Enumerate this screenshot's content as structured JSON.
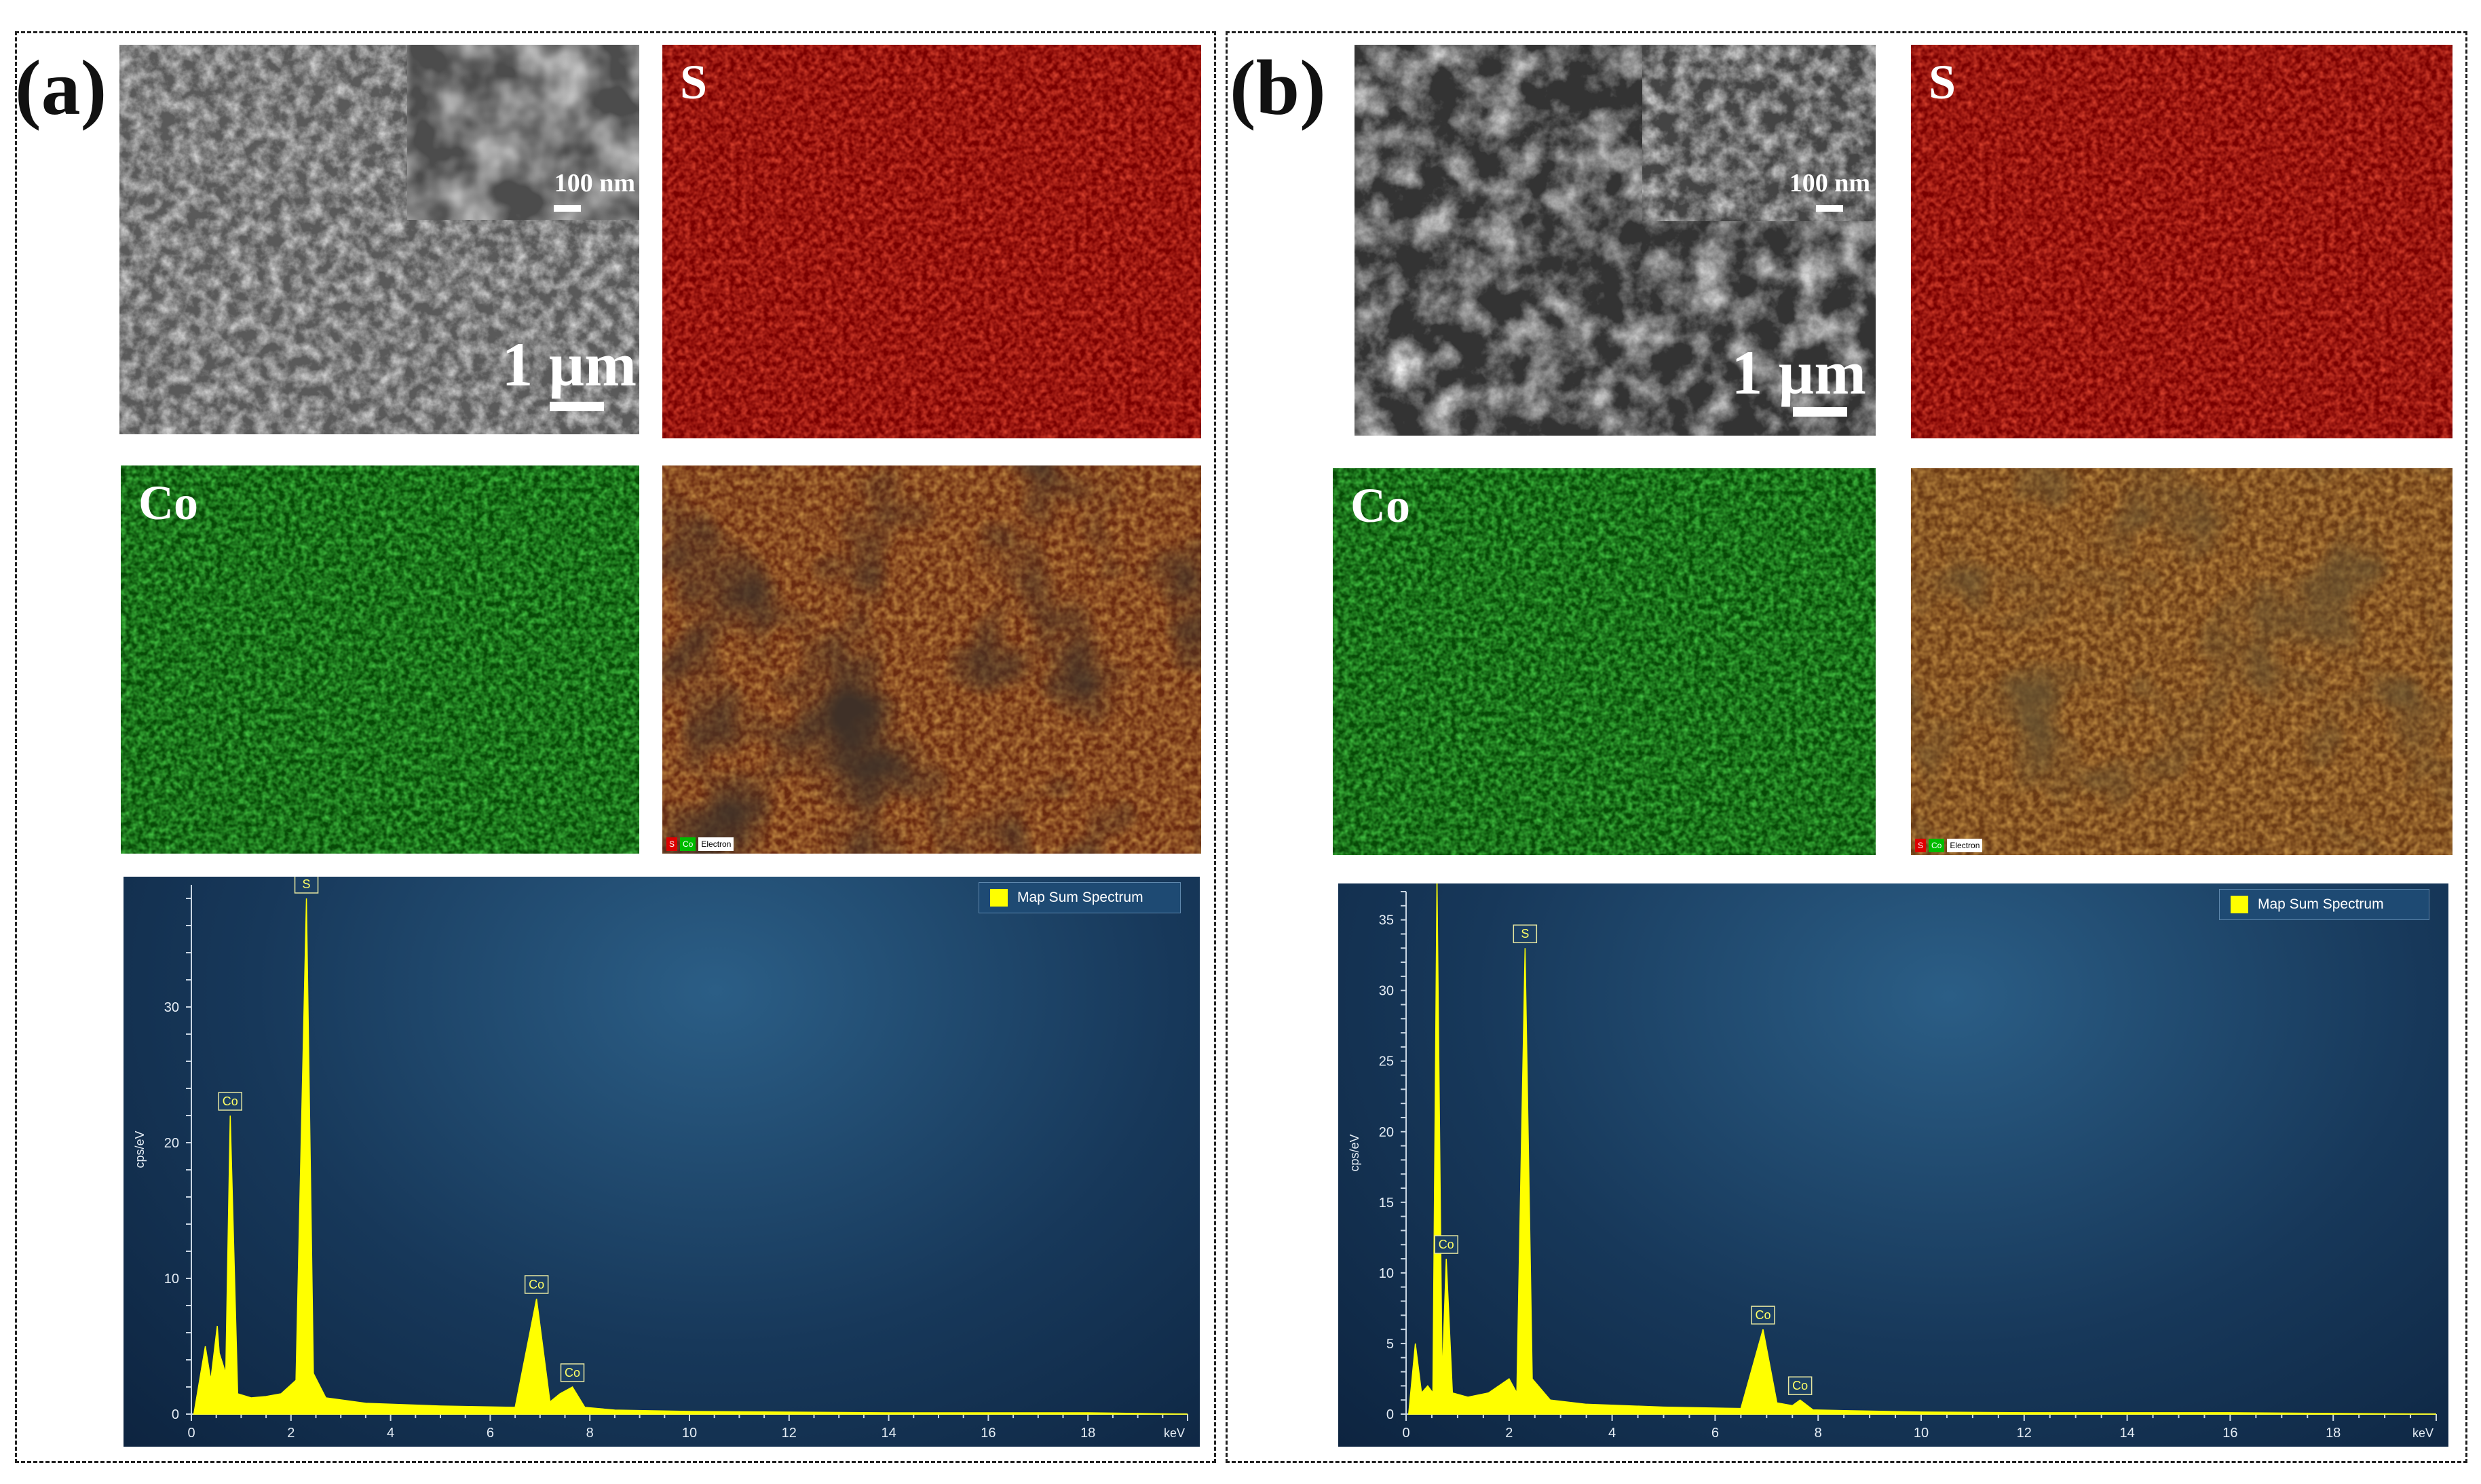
{
  "panels": [
    {
      "label": "(a)",
      "sem": {
        "inset_scale": "100 nm",
        "main_scale": "1 µm"
      },
      "maps": {
        "s_label": "S",
        "co_label": "Co"
      },
      "overlay_legend": [
        "S",
        "Co",
        "Electron"
      ],
      "spectrum": {
        "legend": "Map Sum Spectrum",
        "ylabel": "cps/eV",
        "xunit": "keV",
        "xticks": [
          "0",
          "2",
          "4",
          "6",
          "8",
          "10",
          "12",
          "14",
          "16",
          "18"
        ],
        "yticks": [
          "0",
          "10",
          "20",
          "30"
        ],
        "peak_labels": [
          "S",
          "Co",
          "Co",
          "Co"
        ]
      }
    },
    {
      "label": "(b)",
      "sem": {
        "inset_scale": "100 nm",
        "main_scale": "1 µm"
      },
      "maps": {
        "s_label": "S",
        "co_label": "Co"
      },
      "overlay_legend": [
        "S",
        "Co",
        "Electron"
      ],
      "spectrum": {
        "legend": "Map Sum Spectrum",
        "ylabel": "cps/eV",
        "xunit": "keV",
        "xticks": [
          "0",
          "2",
          "4",
          "6",
          "8",
          "10",
          "12",
          "14",
          "16",
          "18"
        ],
        "yticks": [
          "0",
          "5",
          "10",
          "15",
          "20",
          "25",
          "30",
          "35"
        ],
        "peak_labels": [
          "S",
          "Co",
          "Co",
          "Co"
        ]
      }
    }
  ],
  "chart_data": [
    {
      "type": "line",
      "legend_entries": [
        "Map Sum Spectrum"
      ],
      "xlabel": "keV",
      "ylabel": "cps/eV",
      "xlim": [
        0,
        20
      ],
      "ylim": [
        0,
        39
      ],
      "series": [
        {
          "x": [
            0.05,
            0.28,
            0.39,
            0.52,
            0.56,
            0.69,
            0.78,
            0.93,
            1.2,
            1.5,
            1.8,
            2.1,
            2.31,
            2.45,
            2.7,
            3.5,
            5,
            6.5,
            6.93,
            7.2,
            7.4,
            7.65,
            7.9,
            8.5,
            10,
            12,
            14,
            16,
            18,
            20
          ],
          "values": [
            0,
            5,
            2.5,
            6.5,
            4.5,
            3,
            22,
            1.5,
            1.2,
            1.3,
            1.5,
            2.5,
            38,
            3,
            1.2,
            0.8,
            0.6,
            0.5,
            8.5,
            0.9,
            1.5,
            2.0,
            0.5,
            0.3,
            0.2,
            0.15,
            0.1,
            0.1,
            0.1,
            0
          ]
        }
      ],
      "peaks": [
        {
          "label": "Co",
          "x": 0.78,
          "y": 22
        },
        {
          "label": "S",
          "x": 2.31,
          "y": 38
        },
        {
          "label": "Co",
          "x": 6.93,
          "y": 8.5
        },
        {
          "label": "Co",
          "x": 7.65,
          "y": 2.0
        }
      ]
    },
    {
      "type": "line",
      "legend_entries": [
        "Map Sum Spectrum"
      ],
      "xlabel": "keV",
      "ylabel": "cps/eV",
      "xlim": [
        0,
        20
      ],
      "ylim": [
        0,
        37
      ],
      "series": [
        {
          "x": [
            0.05,
            0.18,
            0.3,
            0.42,
            0.52,
            0.6,
            0.7,
            0.78,
            0.9,
            1.2,
            1.6,
            2.0,
            2.15,
            2.31,
            2.45,
            2.8,
            3.5,
            5,
            6.5,
            6.93,
            7.2,
            7.5,
            7.65,
            7.9,
            8.5,
            10,
            12,
            14,
            16,
            20
          ],
          "values": [
            0,
            5,
            1.5,
            2,
            1.5,
            38,
            2.5,
            11,
            1.5,
            1.2,
            1.5,
            2.5,
            1.5,
            33,
            2.5,
            1,
            0.7,
            0.5,
            0.4,
            6,
            0.8,
            0.6,
            1.0,
            0.3,
            0.25,
            0.15,
            0.1,
            0.1,
            0.1,
            0
          ]
        }
      ],
      "peaks": [
        {
          "label": "Co",
          "x": 0.78,
          "y": 11
        },
        {
          "label": "S",
          "x": 2.31,
          "y": 33
        },
        {
          "label": "Co",
          "x": 6.93,
          "y": 6
        },
        {
          "label": "Co",
          "x": 7.65,
          "y": 1.0
        }
      ]
    }
  ]
}
